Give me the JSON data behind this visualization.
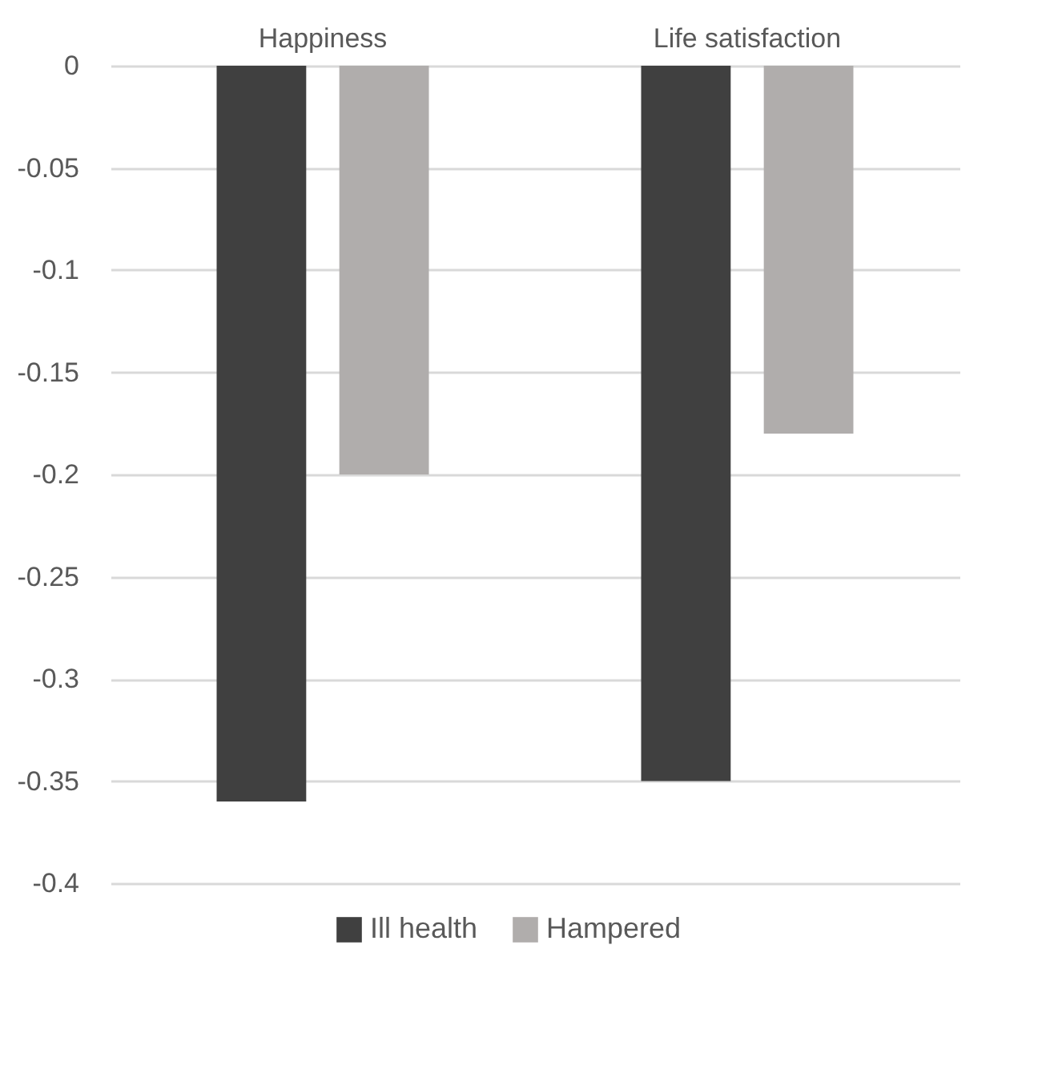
{
  "chart_data": {
    "type": "bar",
    "categories": [
      "Happiness",
      "Life satisfaction"
    ],
    "series": [
      {
        "name": "Ill health",
        "color": "#404040",
        "values": [
          -0.36,
          -0.35
        ]
      },
      {
        "name": "Hampered",
        "color": "#b0adac",
        "values": [
          -0.2,
          -0.18
        ]
      }
    ],
    "ylim": [
      -0.4,
      0
    ],
    "yticks": [
      0,
      -0.05,
      -0.1,
      -0.15,
      -0.2,
      -0.25,
      -0.3,
      -0.35,
      -0.4
    ],
    "grid": "y",
    "legend": "bottom"
  }
}
